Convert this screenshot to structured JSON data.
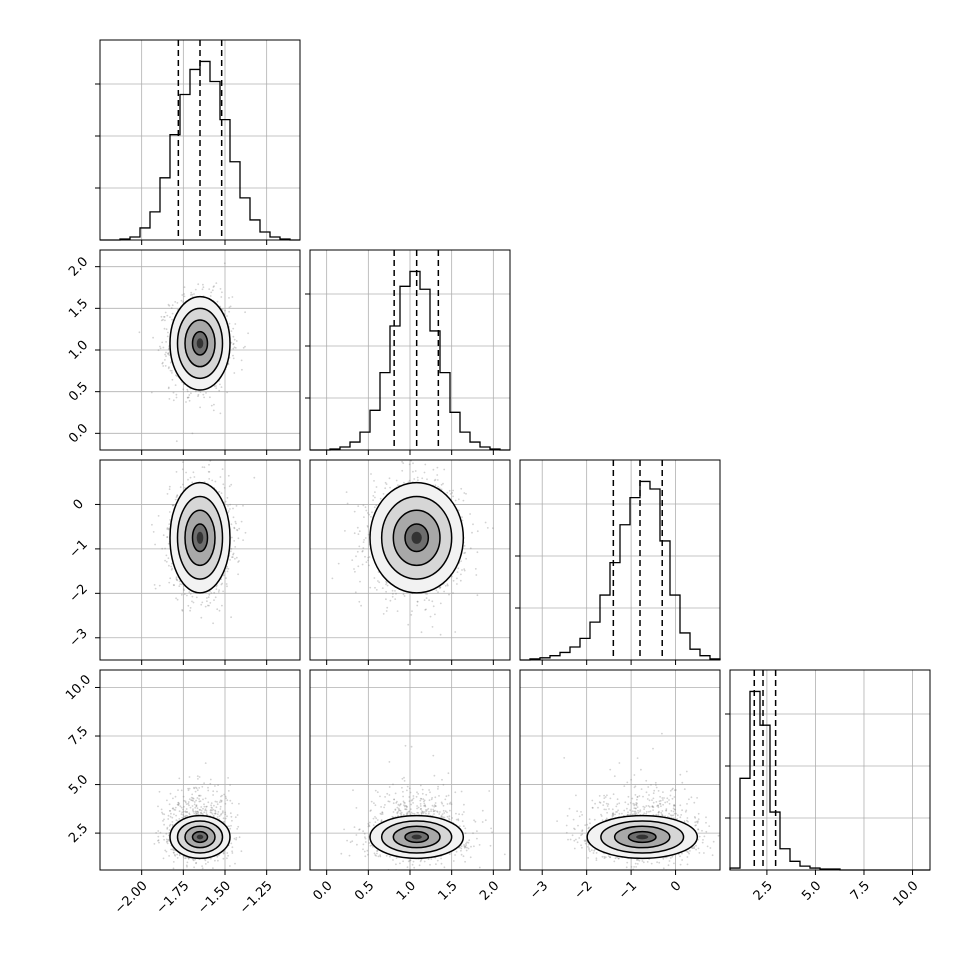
{
  "chart_data": {
    "type": "corner",
    "title": "",
    "variables": [
      {
        "range": [
          -2.25,
          -1.05
        ],
        "ticks": [
          -2.0,
          -1.75,
          -1.5,
          -1.25
        ],
        "tick_labels": [
          "−2.00",
          "−1.75",
          "−1.50",
          "−1.25"
        ],
        "quantiles": [
          -1.78,
          -1.65,
          -1.52
        ]
      },
      {
        "range": [
          -0.2,
          2.2
        ],
        "ticks": [
          0.0,
          0.5,
          1.0,
          1.5,
          2.0
        ],
        "tick_labels": [
          "0.0",
          "0.5",
          "1.0",
          "1.5",
          "2.0"
        ],
        "quantiles": [
          0.81,
          1.08,
          1.34
        ]
      },
      {
        "range": [
          -3.5,
          1.0
        ],
        "ticks": [
          -3,
          -2,
          -1,
          0
        ],
        "tick_labels": [
          "−3",
          "−2",
          "−1",
          "0"
        ],
        "quantiles": [
          -1.4,
          -0.8,
          -0.3
        ]
      },
      {
        "range": [
          0.6,
          10.9
        ],
        "ticks": [
          2.5,
          5.0,
          7.5,
          10.0
        ],
        "tick_labels": [
          "2.5",
          "5.0",
          "7.5",
          "10.0"
        ],
        "quantiles": [
          1.85,
          2.3,
          2.95
        ]
      }
    ],
    "histograms": [
      {
        "variable": 0,
        "bin_edges": [
          -2.25,
          -2.19,
          -2.13,
          -2.07,
          -2.01,
          -1.95,
          -1.89,
          -1.83,
          -1.77,
          -1.71,
          -1.65,
          -1.59,
          -1.53,
          -1.47,
          -1.41,
          -1.35,
          -1.29,
          -1.23,
          -1.17,
          -1.11,
          -1.05
        ],
        "counts": [
          0,
          0,
          1,
          3,
          12,
          28,
          62,
          105,
          145,
          170,
          178,
          158,
          120,
          78,
          42,
          20,
          8,
          3,
          1,
          0
        ]
      },
      {
        "variable": 1,
        "bin_edges": [
          -0.2,
          -0.08,
          0.04,
          0.16,
          0.28,
          0.4,
          0.52,
          0.64,
          0.76,
          0.88,
          1.0,
          1.12,
          1.24,
          1.36,
          1.48,
          1.6,
          1.72,
          1.84,
          1.96,
          2.08,
          2.2
        ],
        "counts": [
          0,
          0,
          1,
          3,
          8,
          18,
          40,
          78,
          125,
          165,
          180,
          162,
          120,
          78,
          38,
          18,
          8,
          3,
          1,
          0
        ]
      },
      {
        "variable": 2,
        "bin_edges": [
          -3.5,
          -3.275,
          -3.05,
          -2.825,
          -2.6,
          -2.375,
          -2.15,
          -1.925,
          -1.7,
          -1.475,
          -1.25,
          -1.025,
          -0.8,
          -0.575,
          -0.35,
          -0.125,
          0.1,
          0.325,
          0.55,
          0.775,
          1.0
        ],
        "counts": [
          0,
          1,
          2,
          4,
          7,
          12,
          20,
          35,
          60,
          90,
          125,
          150,
          165,
          158,
          110,
          60,
          25,
          10,
          4,
          1
        ]
      },
      {
        "variable": 3,
        "bin_edges": [
          0.6,
          1.115,
          1.63,
          2.145,
          2.66,
          3.175,
          3.69,
          4.205,
          4.72,
          5.235,
          5.75,
          6.265,
          6.78,
          7.295,
          7.81,
          8.325,
          8.84,
          9.355,
          9.87,
          10.385,
          10.9
        ],
        "counts": [
          2,
          95,
          185,
          150,
          60,
          22,
          9,
          4,
          2,
          1,
          1,
          0,
          0,
          0,
          0,
          0,
          0,
          0,
          0,
          0
        ]
      }
    ],
    "pairs": [
      {
        "x_var": 0,
        "y_var": 1,
        "center": [
          -1.65,
          1.08
        ],
        "sd": [
          0.09,
          0.28
        ]
      },
      {
        "x_var": 0,
        "y_var": 2,
        "center": [
          -1.65,
          -0.75
        ],
        "sd": [
          0.09,
          0.62
        ]
      },
      {
        "x_var": 1,
        "y_var": 2,
        "center": [
          1.08,
          -0.75
        ],
        "sd": [
          0.28,
          0.62
        ]
      },
      {
        "x_var": 0,
        "y_var": 3,
        "center": [
          -1.65,
          2.3
        ],
        "sd": [
          0.09,
          0.55
        ]
      },
      {
        "x_var": 1,
        "y_var": 3,
        "center": [
          1.08,
          2.3
        ],
        "sd": [
          0.28,
          0.55
        ]
      },
      {
        "x_var": 2,
        "y_var": 3,
        "center": [
          -0.75,
          2.3
        ],
        "sd": [
          0.62,
          0.55
        ]
      }
    ],
    "contour_levels_sigma": [
      0.5,
      1.0,
      1.5,
      2.0
    ],
    "grid": true,
    "colors": {
      "points": "#7f7f7f",
      "contour": "#000000",
      "quantile": "#000000",
      "grid": "#b0b0b0"
    }
  }
}
